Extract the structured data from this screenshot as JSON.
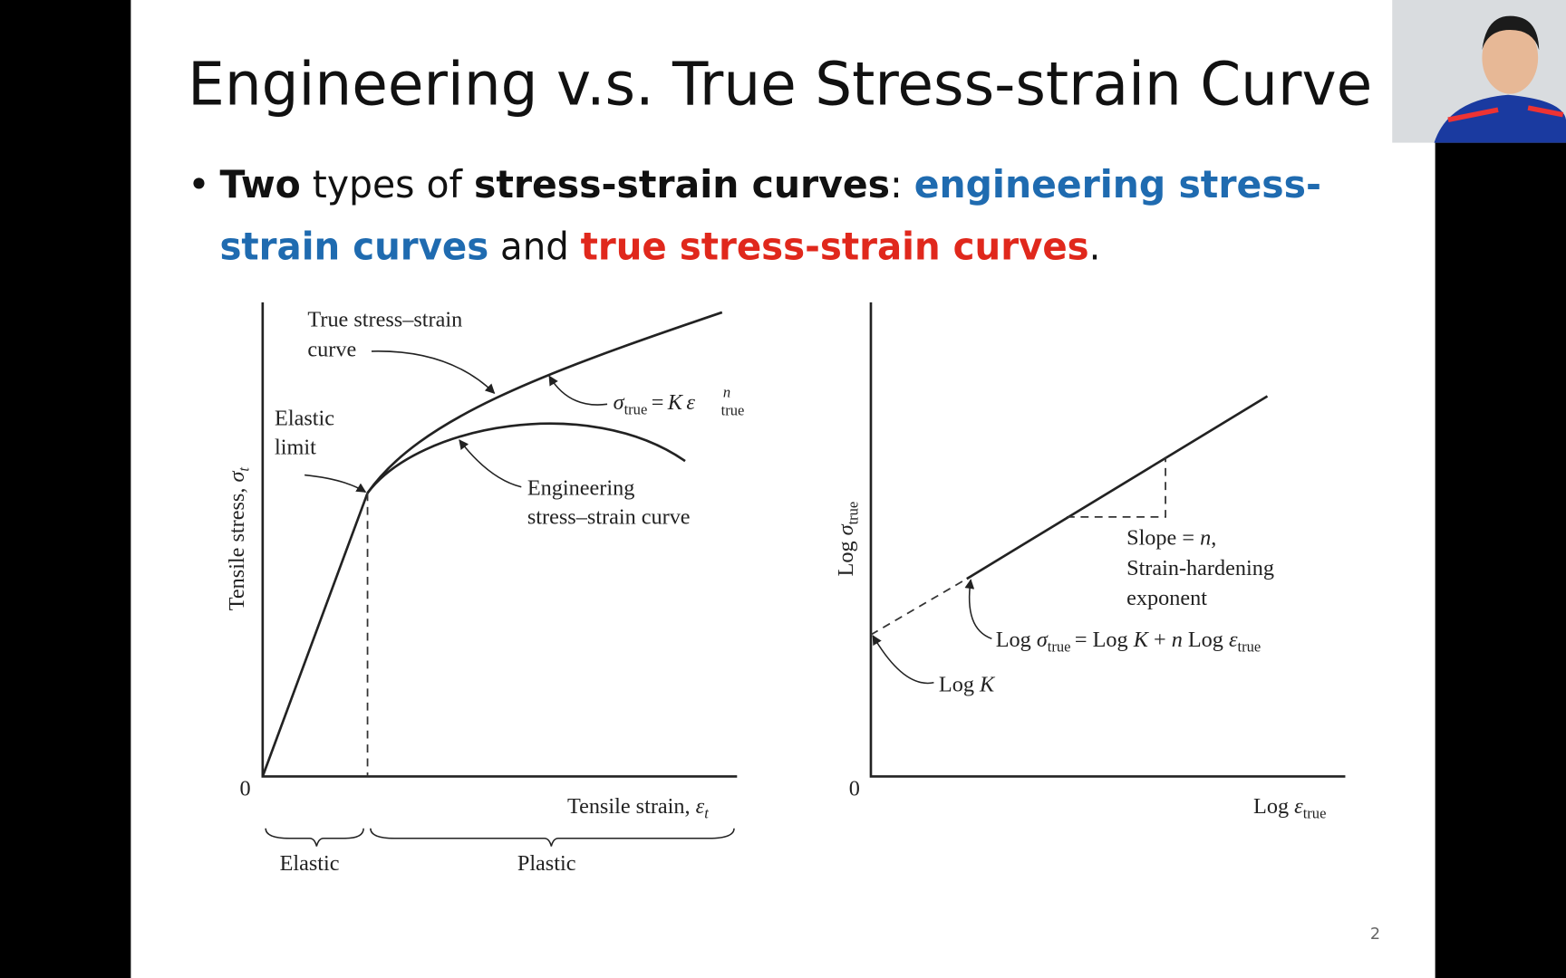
{
  "slide": {
    "title": "Engineering v.s. True Stress-strain Curve",
    "bullet": [
      "Two",
      "types of",
      "stress-strain curves",
      ":",
      "engineering stress-",
      "strain curves",
      "and",
      "true stress-strain curves",
      "."
    ],
    "page_number": "2"
  },
  "left_diagram": {
    "true_curve_label": [
      "True stress–strain",
      "curve"
    ],
    "elastic_limit_label": [
      "Elastic",
      "limit"
    ],
    "equation": [
      "σ",
      "true",
      "=",
      "K",
      "ε",
      "n",
      "true"
    ],
    "engineering_label": [
      "Engineering",
      "stress–strain curve"
    ],
    "y_axis_label": [
      "Tensile stress,",
      "σ",
      "t"
    ],
    "x_axis_label": [
      "Tensile strain,",
      "ε",
      "t"
    ],
    "origin": "0",
    "regions": [
      "Elastic",
      "Plastic"
    ]
  },
  "right_diagram": {
    "slope_label": [
      "Slope =",
      "n",
      ",",
      "Strain-hardening",
      "exponent"
    ],
    "equation": [
      "Log",
      "σ",
      "true",
      "= Log",
      "K",
      "+",
      "n",
      "Log",
      "ε",
      "true"
    ],
    "intercept_label": [
      "Log",
      "K"
    ],
    "y_axis_label": [
      "Log",
      "σ",
      "true"
    ],
    "x_axis_label": [
      "Log",
      "ε",
      "true"
    ],
    "origin": "0"
  }
}
